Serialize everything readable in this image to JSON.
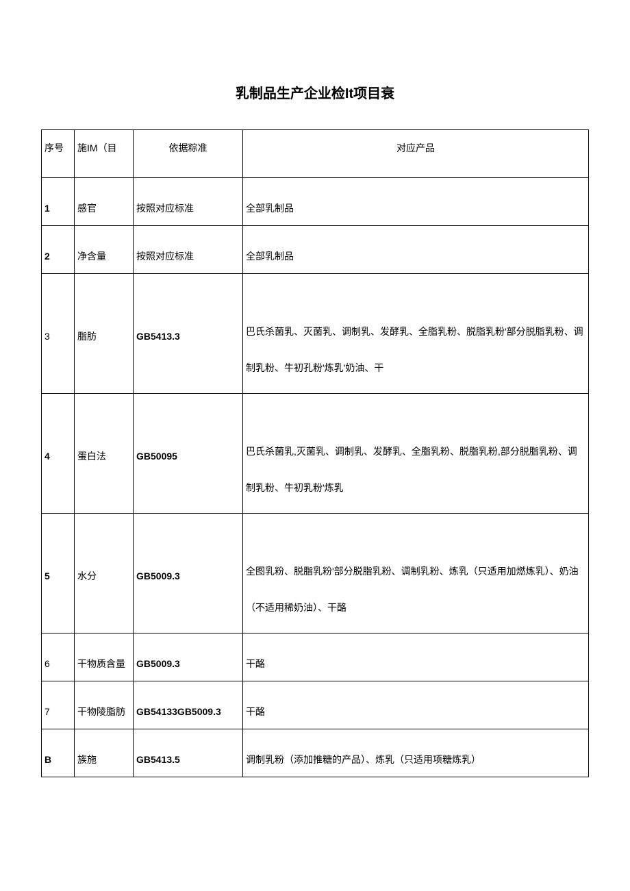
{
  "title": "乳制品生产企业检It项目衰",
  "headers": {
    "num": "序号",
    "item": "施IM（目",
    "basis": "依据粽准",
    "product": "对应产品"
  },
  "rows": [
    {
      "num": "1",
      "item": "感官",
      "basis": "按照对应标准",
      "product": "全部乳制品",
      "tall": false,
      "num_bold": true
    },
    {
      "num": "2",
      "item": "净含量",
      "basis": "按照对应标准",
      "product": "全部乳制品",
      "tall": false,
      "num_bold": true
    },
    {
      "num": "3",
      "item": "脂肪",
      "basis": "GB5413.3",
      "product": "巴氏杀菌乳、灭菌乳、调制乳、发酵乳、全脂乳粉、脱脂乳粉'部分脱脂乳粉、调制乳粉、牛初孔粉'炼乳'奶油、干",
      "tall": true,
      "basis_bold": true
    },
    {
      "num": "4",
      "item": "蛋白法",
      "basis": "GB50095",
      "product": "巴氏杀菌乳,灭菌乳、调制乳、发酵乳、全脂乳粉、脱脂乳粉,部分脱脂乳粉、调制乳粉、牛初乳粉'炼乳",
      "tall": true,
      "num_bold": true,
      "basis_bold": true
    },
    {
      "num": "5",
      "item": "水分",
      "basis": "GB5009.3",
      "product": "全图乳粉、脱脂乳粉'部分脱脂乳粉、调制乳粉、炼乳（只适用加燃炼乳）、奶油（不适用稀奶油）、干酪",
      "tall": true,
      "num_bold": true,
      "basis_bold": true
    },
    {
      "num": "6",
      "item": "干物质含量",
      "basis": "GB5009.3",
      "product": "干酪",
      "tall": false,
      "basis_bold": true
    },
    {
      "num": "7",
      "item": "干物陵脂肪",
      "basis": "GB54133GB5009.3",
      "product": "干酪",
      "tall": false,
      "basis_bold": true
    },
    {
      "num": "B",
      "item": "族施",
      "basis": "GB5413.5",
      "product": "调制乳粉（添加推糖的产品）、炼乳（只适用项糖炼乳）",
      "tall": false,
      "num_bold": true,
      "basis_bold": true
    }
  ]
}
